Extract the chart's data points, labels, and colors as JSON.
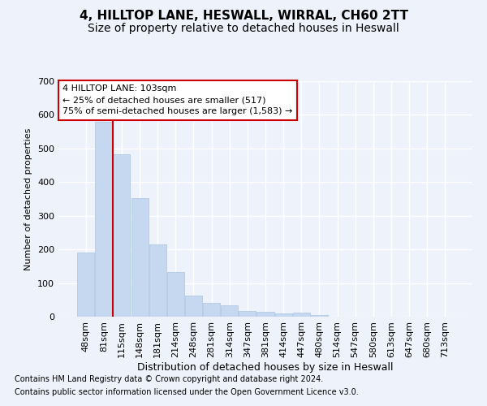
{
  "title1": "4, HILLTOP LANE, HESWALL, WIRRAL, CH60 2TT",
  "title2": "Size of property relative to detached houses in Heswall",
  "xlabel": "Distribution of detached houses by size in Heswall",
  "ylabel": "Number of detached properties",
  "categories": [
    "48sqm",
    "81sqm",
    "115sqm",
    "148sqm",
    "181sqm",
    "214sqm",
    "248sqm",
    "281sqm",
    "314sqm",
    "347sqm",
    "381sqm",
    "414sqm",
    "447sqm",
    "480sqm",
    "514sqm",
    "547sqm",
    "580sqm",
    "613sqm",
    "647sqm",
    "680sqm",
    "713sqm"
  ],
  "values": [
    190,
    580,
    482,
    352,
    215,
    133,
    62,
    42,
    33,
    17,
    15,
    9,
    11,
    6,
    0,
    0,
    0,
    0,
    0,
    0,
    0
  ],
  "bar_color": "#c5d8f0",
  "bar_edge_color": "#aac4e0",
  "annotation_line1": "4 HILLTOP LANE: 103sqm",
  "annotation_line2": "← 25% of detached houses are smaller (517)",
  "annotation_line3": "75% of semi-detached houses are larger (1,583) →",
  "annotation_box_color": "#ffffff",
  "annotation_box_edge_color": "#cc0000",
  "vline_color": "#cc0000",
  "vline_x": 2,
  "ylim": [
    0,
    700
  ],
  "yticks": [
    0,
    100,
    200,
    300,
    400,
    500,
    600,
    700
  ],
  "footer1": "Contains HM Land Registry data © Crown copyright and database right 2024.",
  "footer2": "Contains public sector information licensed under the Open Government Licence v3.0.",
  "bg_color": "#eef2fa",
  "plot_bg_color": "#eef2fa",
  "grid_color": "#ffffff",
  "title1_fontsize": 11,
  "title2_fontsize": 10,
  "xlabel_fontsize": 9,
  "ylabel_fontsize": 8,
  "tick_fontsize": 8,
  "footer_fontsize": 7,
  "annot_fontsize": 8
}
